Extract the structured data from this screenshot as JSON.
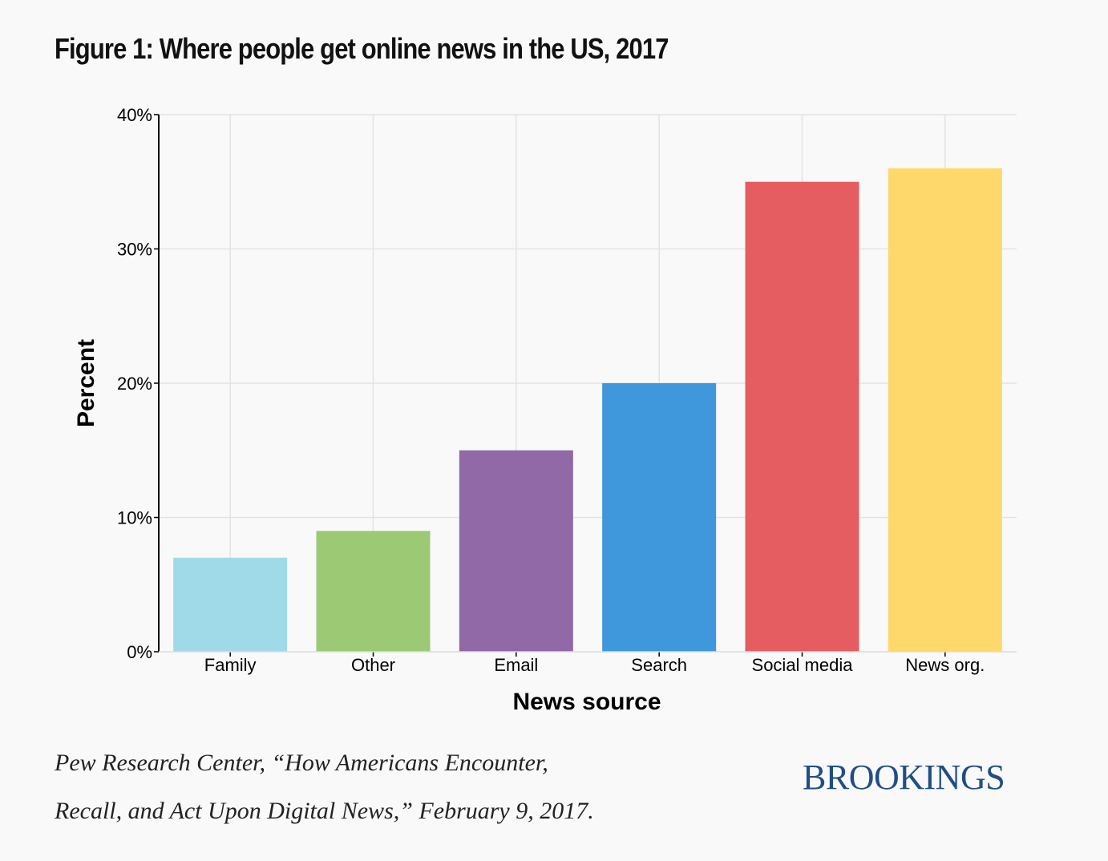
{
  "title": "Figure 1: Where people get online news in the US, 2017",
  "source": {
    "line1": "Pew Research Center, “How Americans Encounter,",
    "line2": "Recall, and Act Upon Digital News,” February 9, 2017."
  },
  "brand": "BROOKINGS",
  "colors": {
    "background": "#f9f9f9",
    "grid": "#e3e3e3",
    "brand": "#1f4e85"
  },
  "chart_data": {
    "type": "bar",
    "xlabel": "News source",
    "ylabel": "Percent",
    "categories": [
      "Family",
      "Other",
      "Email",
      "Search",
      "Social media",
      "News org."
    ],
    "values": [
      7,
      9,
      15,
      20,
      35,
      36
    ],
    "colors": [
      "#a0dae8",
      "#9cca74",
      "#9069a6",
      "#3f97dc",
      "#e55d61",
      "#fed86a"
    ],
    "ylim": [
      0,
      40
    ],
    "yticks": [
      0,
      10,
      20,
      30,
      40
    ],
    "ytick_labels": [
      "0%",
      "10%",
      "20%",
      "30%",
      "40%"
    ],
    "grid": true,
    "legend": "none"
  }
}
